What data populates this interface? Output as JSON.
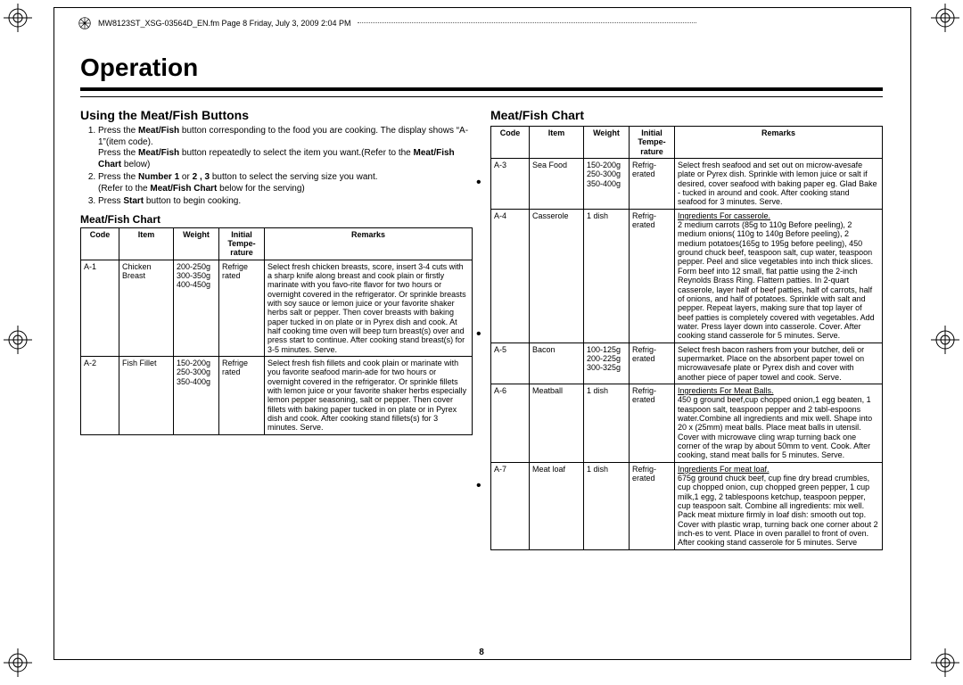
{
  "header": {
    "text": "MW8123ST_XSG-03564D_EN.fm  Page 8  Friday, July 3, 2009  2:04 PM"
  },
  "title": "Operation",
  "pagenum": "8",
  "left": {
    "section_heading": "Using the Meat/Fish Buttons",
    "instructions": [
      "Press the <b>Meat/Fish</b> button corresponding to the food you are cooking. The display shows “A-1”(item code).<br>Press the <b>Meat/Fish</b> button repeatedly to select the item you want.(Refer to the <b>Meat/Fish Chart</b> below)",
      "Press the <b>Number 1</b> or <b>2 , 3</b> button to select the serving size you want.<br>(Refer to the <b>Meat/Fish Chart</b> below for the serving)",
      "Press <b>Start</b> button to begin cooking."
    ],
    "chart_heading": "Meat/Fish Chart",
    "headers": {
      "code": "Code",
      "item": "Item",
      "weight": "Weight",
      "temp": "Initial Tempe-rature",
      "remarks": "Remarks"
    },
    "rows": [
      {
        "code": "A-1",
        "item": "Chicken Breast",
        "weight": "200-250g<br>300-350g<br>400-450g",
        "temp": "Refrige rated",
        "remarks": "Select fresh chicken breasts, score, insert 3-4 cuts with a sharp knife along breast and cook plain or firstly marinate with you favo-rite flavor for two hours or overnight covered in the refrigerator. Or sprinkle breasts with soy sauce or lemon juice or your favorite shaker herbs salt or pepper. Then cover breasts with baking paper tucked in on plate or in Pyrex dish and cook. At half cooking time oven will beep  turn breast(s) over and press start to continue. After cooking stand breast(s) for 3-5 minutes. Serve."
      },
      {
        "code": "A-2",
        "item": "Fish Fillet",
        "weight": "150-200g<br>250-300g<br>350-400g",
        "temp": "Refrige rated",
        "remarks": "Select fresh fish fillets and cook plain or marinate with you favorite seafood marin-ade for two hours or overnight covered in the refrigerator. Or sprinkle fillets with lemon juice or your favorite shaker herbs especially lemon pepper seasoning, salt or pepper. Then cover fillets with baking paper tucked in on plate or in Pyrex dish and cook. After cooking stand fillets(s) for 3 minutes. Serve."
      }
    ]
  },
  "right": {
    "chart_heading": "Meat/Fish Chart",
    "headers": {
      "code": "Code",
      "item": "Item",
      "weight": "Weight",
      "temp": "Initial Tempe-rature",
      "remarks": "Remarks"
    },
    "rows": [
      {
        "code": "A-3",
        "item": "Sea Food",
        "weight": "150-200g<br>250-300g<br>350-400g",
        "temp": "Refrig-erated",
        "remarks": "Select fresh seafood and set out on microw-avesafe plate or Pyrex dish. Sprinkle with lemon juice or salt if desired, cover seafood with baking paper eg. Glad Bake - tucked in around and cook. After cooking stand seafood for 3 minutes. Serve."
      },
      {
        "code": "A-4",
        "item": "Casserole",
        "weight": "1 dish",
        "temp": "Refrig-erated",
        "remarks": "<span class='u'>Ingredients For casserole.</span><br>2 medium carrots (85g to 110g  Before peeling), 2 medium onions( 110g to 140g  Before peeling), 2 medium potatoes(165g to 195g before peeling), 450 ground chuck beef, teaspoon salt, cup water, teaspoon pepper. Peel and slice vegetables into inch thick slices. Form beef into 12 small, flat pattie using the 2-inch Reynolds Brass Ring. Flattern patties. In 2-quart casserole, layer half of beef patties, half of carrots, half of onions, and half of potatoes. Sprinkle with salt and pepper. Repeat layers, making sure that top layer of beef patties is completely covered with vegetables. Add water. Press layer down into casserole. Cover. After cooking stand casserole for 5 minutes. Serve."
      },
      {
        "code": "A-5",
        "item": "Bacon",
        "weight": "100-125g<br>200-225g<br>300-325g",
        "temp": "Refrig-erated",
        "remarks": "Select fresh bacon rashers from your butcher, deli or supermarket. Place on the absorbent paper towel on microwavesafe plate or Pyrex dish and cover with another piece of paper towel and cook. Serve."
      },
      {
        "code": "A-6",
        "item": "Meatball",
        "weight": "1 dish",
        "temp": "Refrig-erated",
        "remarks": "<span class='u'>Ingredients For Meat Balls.</span><br>450 g ground beef,cup chopped onion,1 egg beaten, 1 teaspoon salt, teaspoon pepper and 2 tabl-espoons water.Combine all ingredients and mix well. Shape into 20 x  (25mm) meat balls. Place meat balls in utensil. Cover with microwave cling wrap turning back one corner of the wrap by about 50mm to vent. Cook. After cooking, stand meat balls for 5 minutes. Serve."
      },
      {
        "code": "A-7",
        "item": "Meat loaf",
        "weight": "1 dish",
        "temp": "Refrig-erated",
        "remarks": "<span class='u'>Ingredients For meat loaf.</span><br>675g ground chuck beef, cup fine dry bread crumbles, cup chopped onion, cup chopped green pepper, 1 cup milk,1 egg, 2 tablespoons ketchup, teaspoon pepper, cup teaspoon salt. Combine all ingredients: mix well. Pack meat mixture firmly in loaf dish: smooth out top. Cover with plastic wrap, turning back one corner about 2 inch-es to vent. Place in oven parallel to front of oven. After cooking stand casserole for 5 minutes. Serve"
      }
    ]
  }
}
